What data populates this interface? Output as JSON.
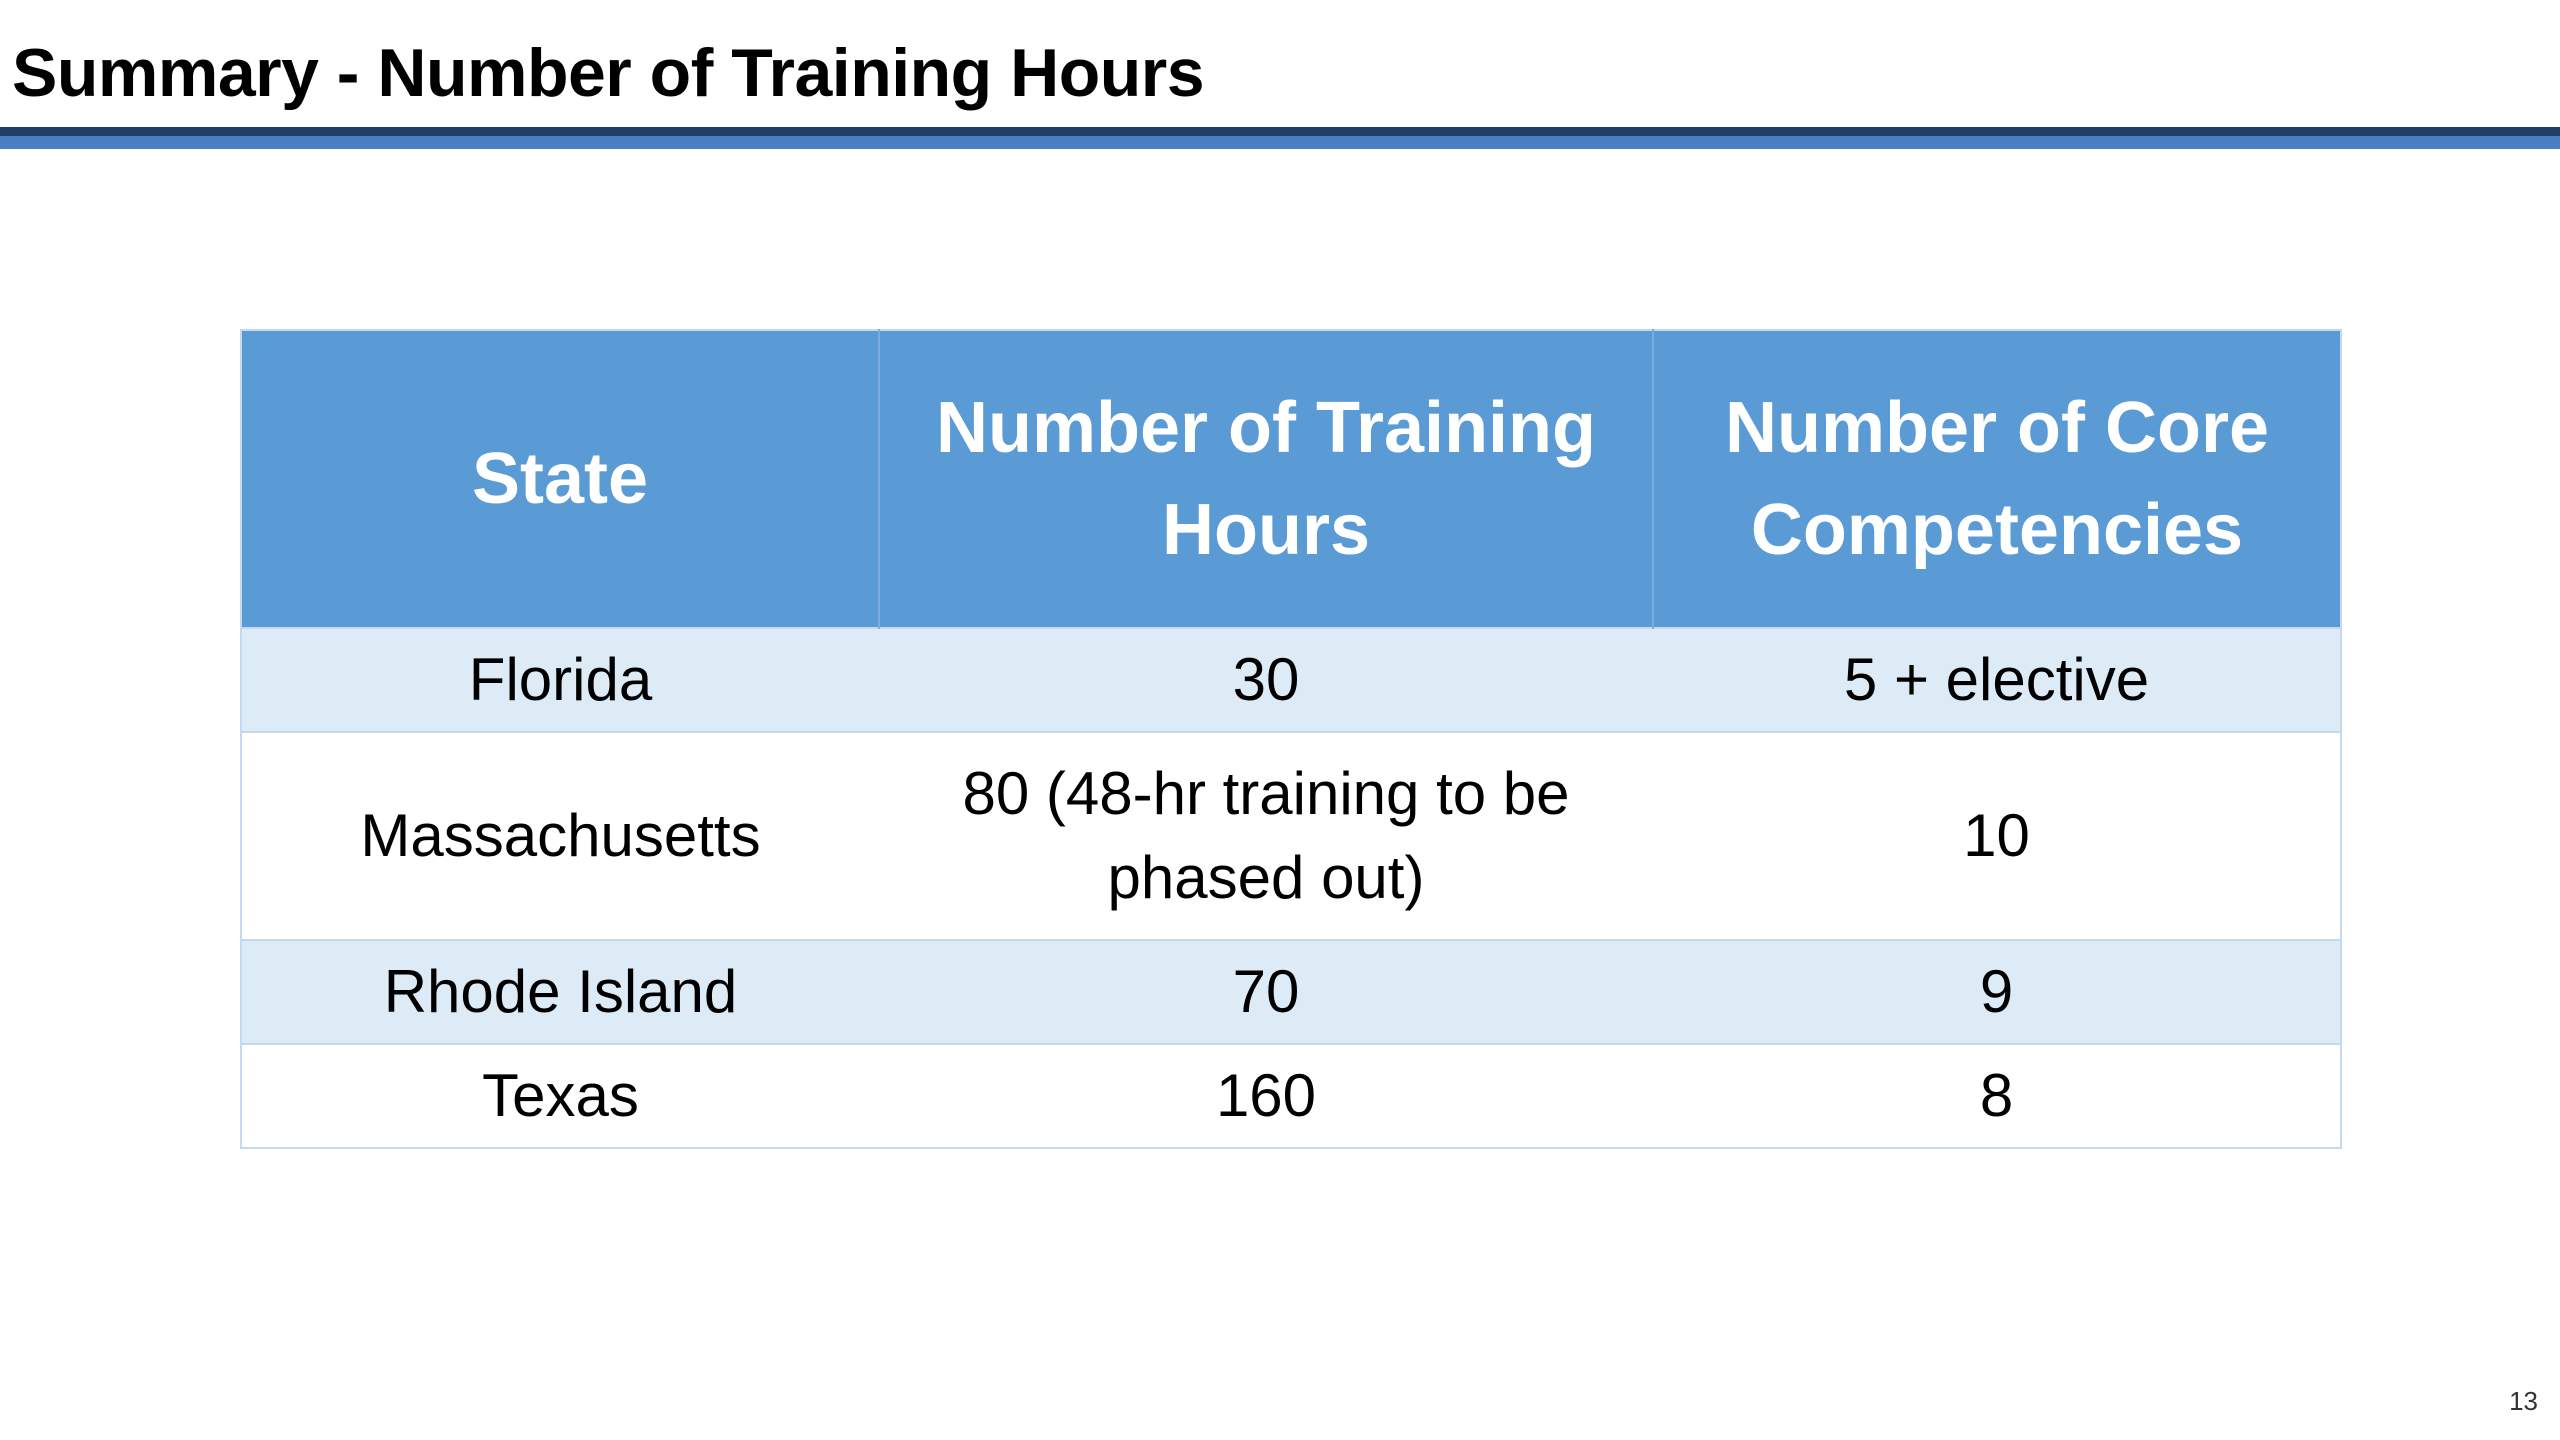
{
  "slide": {
    "title": "Summary - Number of Training Hours",
    "page_number": "13"
  },
  "table": {
    "headers": {
      "state": "State",
      "hours": "Number of Training Hours",
      "competencies": "Number of Core Competencies"
    },
    "rows": [
      {
        "state": "Florida",
        "hours": "30",
        "competencies": "5 + elective"
      },
      {
        "state": "Massachusetts",
        "hours": "80 (48-hr training to be phased out)",
        "competencies": "10"
      },
      {
        "state": "Rhode Island",
        "hours": "70",
        "competencies": "9"
      },
      {
        "state": "Texas",
        "hours": "160",
        "competencies": "8"
      }
    ]
  },
  "colors": {
    "header_fill": "#5b9bd5",
    "band_fill": "#ddebf7",
    "rule_dark": "#1f3f68",
    "rule_light": "#4a7fc3"
  }
}
